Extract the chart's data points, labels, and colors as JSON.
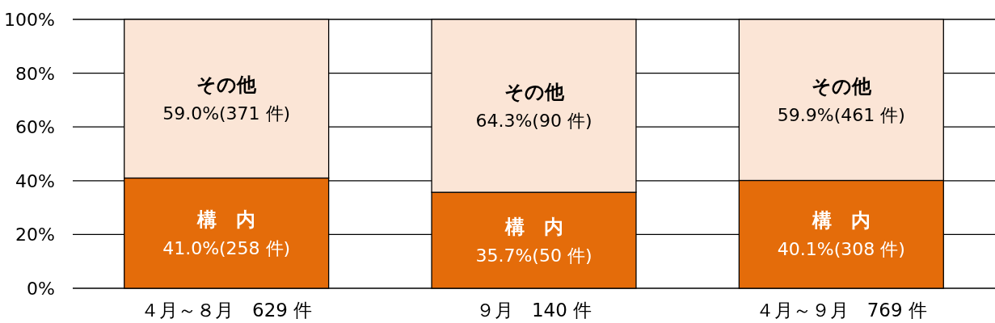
{
  "chart_data": {
    "type": "bar",
    "stacked": true,
    "categories": [
      "４月～８月　629 件",
      "９月　140 件",
      "４月～９月　769 件"
    ],
    "series": [
      {
        "name": "構　内",
        "color": "#e46c0a",
        "values": [
          41.0,
          35.7,
          40.1
        ],
        "value_labels": [
          "41.0%(258 件)",
          "35.7%(50 件)",
          "40.1%(308 件)"
        ]
      },
      {
        "name": "その他",
        "color": "#fbe5d6",
        "values": [
          59.0,
          64.3,
          59.9
        ],
        "value_labels": [
          "59.0%(371 件)",
          "64.3%(90 件)",
          "59.9%(461 件)"
        ]
      }
    ],
    "ylim": [
      0,
      100
    ],
    "yticks": [
      {
        "value": 0,
        "label": "0%"
      },
      {
        "value": 20,
        "label": "20%"
      },
      {
        "value": 40,
        "label": "40%"
      },
      {
        "value": 60,
        "label": "60%"
      },
      {
        "value": 80,
        "label": "80%"
      },
      {
        "value": 100,
        "label": "100%"
      }
    ],
    "grid": "y"
  }
}
